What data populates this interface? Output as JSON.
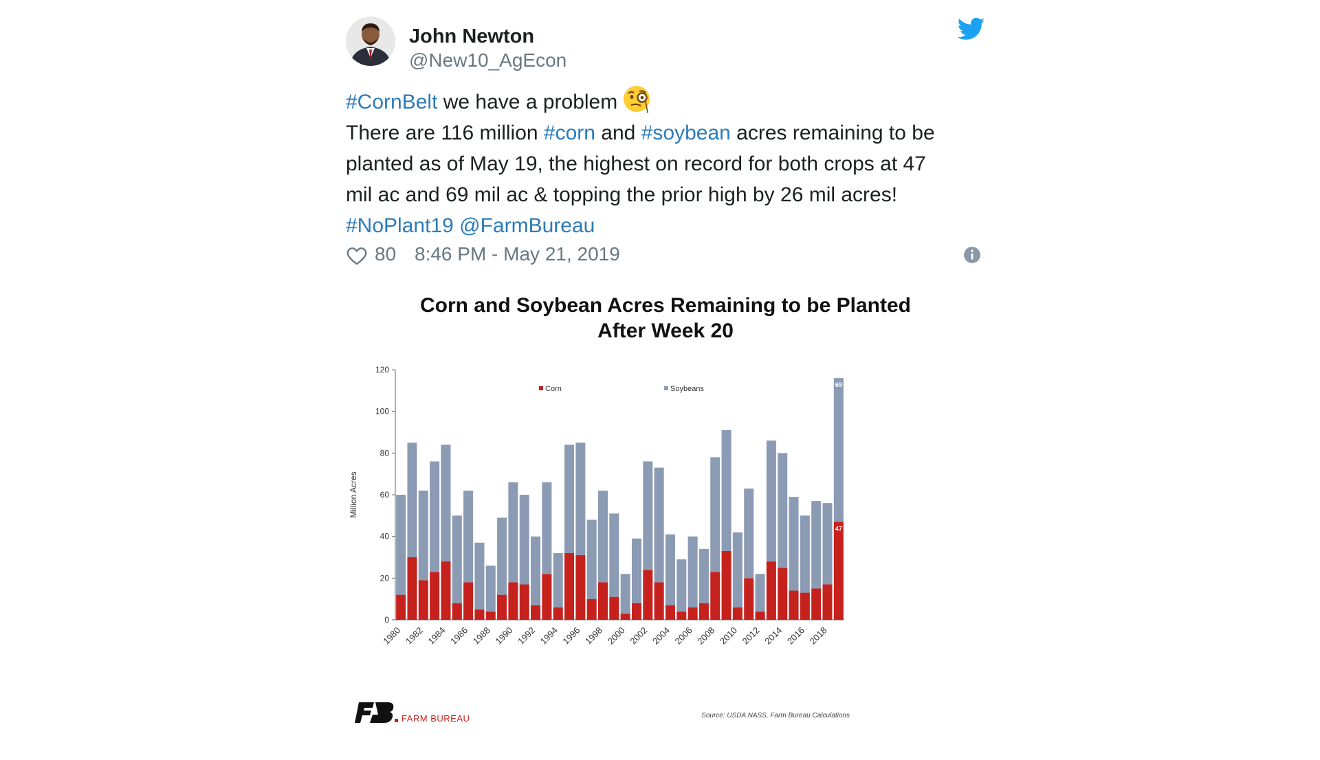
{
  "author": {
    "name": "John Newton",
    "handle": "@New10_AgEcon"
  },
  "icons": {
    "bird": "twitter-bird-icon",
    "emoji": "face-with-monocle-emoji",
    "heart": "heart-icon",
    "info": "info-icon"
  },
  "tweet": {
    "line1": [
      {
        "text": "#CornBelt",
        "link": true
      },
      {
        "text": " we have a problem",
        "link": false
      }
    ],
    "line2": [
      {
        "text": "There are 116 million ",
        "link": false
      },
      {
        "text": "#corn",
        "link": true
      },
      {
        "text": " and ",
        "link": false
      },
      {
        "text": "#soybean",
        "link": true
      },
      {
        "text": " acres remaining to be",
        "link": false
      }
    ],
    "line3": "planted as of May 19, the highest on record for both crops at 47",
    "line4": "mil ac and 69 mil ac & topping the prior high by 26 mil acres!",
    "line5": [
      {
        "text": "#NoPlant19",
        "link": true
      },
      {
        "text": " ",
        "link": false
      },
      {
        "text": "@FarmBureau",
        "link": true
      }
    ]
  },
  "meta": {
    "likes": "80",
    "timestamp": "8:46 PM - May 21, 2019"
  },
  "colors": {
    "link": "#2b7bb9",
    "twitter_blue": "#1da1f2",
    "corn": "#c5211d",
    "soybeans": "#8c9bb4"
  },
  "footer": {
    "logo_text": "FARM BUREAU",
    "source": "Source: USDA NASS, Farm Bureau Calculations"
  },
  "chart_data": {
    "type": "bar",
    "stacked": true,
    "title_line1": "Corn and Soybean Acres Remaining to be Planted",
    "title_line2": "After Week 20",
    "ylabel": "Million Acres",
    "ylim": [
      0,
      120
    ],
    "yticks": [
      0,
      20,
      40,
      60,
      80,
      100,
      120
    ],
    "legend_position": "top",
    "x": [
      1980,
      1981,
      1982,
      1983,
      1984,
      1985,
      1986,
      1987,
      1988,
      1989,
      1990,
      1991,
      1992,
      1993,
      1994,
      1995,
      1996,
      1997,
      1998,
      1999,
      2000,
      2001,
      2002,
      2003,
      2004,
      2005,
      2006,
      2007,
      2008,
      2009,
      2010,
      2011,
      2012,
      2013,
      2014,
      2015,
      2016,
      2017,
      2018,
      2019
    ],
    "x_tick_labels": [
      "1980",
      "1982",
      "1984",
      "1986",
      "1988",
      "1990",
      "1992",
      "1994",
      "1996",
      "1998",
      "2000",
      "2002",
      "2004",
      "2006",
      "2008",
      "2010",
      "2012",
      "2014",
      "2016",
      "2018"
    ],
    "series": [
      {
        "name": "Corn",
        "color": "#c5211d",
        "values": [
          12,
          30,
          19,
          23,
          28,
          8,
          18,
          5,
          4,
          12,
          18,
          17,
          7,
          22,
          6,
          32,
          31,
          10,
          18,
          11,
          3,
          8,
          24,
          18,
          7,
          4,
          6,
          8,
          23,
          33,
          6,
          20,
          4,
          28,
          25,
          14,
          13,
          15,
          17,
          47
        ]
      },
      {
        "name": "Soybeans",
        "color": "#8c9bb4",
        "values": [
          48,
          55,
          43,
          53,
          56,
          42,
          44,
          32,
          22,
          37,
          48,
          43,
          33,
          44,
          26,
          52,
          54,
          38,
          44,
          40,
          19,
          31,
          52,
          55,
          34,
          25,
          34,
          26,
          55,
          58,
          36,
          43,
          18,
          58,
          55,
          45,
          37,
          42,
          39,
          69
        ]
      }
    ],
    "data_labels": [
      {
        "series": "Soybeans",
        "x": 2019,
        "text": "69"
      },
      {
        "series": "Corn",
        "x": 2019,
        "text": "47"
      }
    ]
  }
}
